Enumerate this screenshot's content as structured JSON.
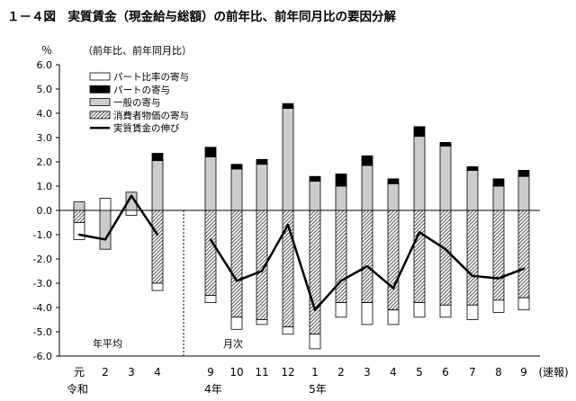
{
  "chart_data": {
    "type": "bar",
    "title": "１－４図　実質賃金（現金給与総額）の前年比、前年同月比の要因分解",
    "subtitle": "（前年比、前年同月比）",
    "ylabel": "％",
    "ylim": [
      -6.0,
      6.0
    ],
    "yticks": [
      6.0,
      5.0,
      4.0,
      3.0,
      2.0,
      1.0,
      0.0,
      -1.0,
      -2.0,
      -3.0,
      -4.0,
      -5.0,
      -6.0
    ],
    "ytick_labels": [
      "6.0",
      "5.0",
      "4.0",
      "3.0",
      "2.0",
      "1.0",
      "0.0",
      "-1.0",
      "-2.0",
      "-3.0",
      "-4.0",
      "-5.0",
      "-6.0"
    ],
    "grid": false,
    "legend_position": "top-left",
    "categories": [
      "元",
      "2",
      "3",
      "4",
      "9",
      "10",
      "11",
      "12",
      "1",
      "2",
      "3",
      "4",
      "5",
      "6",
      "7",
      "8",
      "9"
    ],
    "group_labels": {
      "reiwa": "令和",
      "annual": "年平均",
      "monthly": "月次",
      "year4": "4年",
      "year5": "5年",
      "preliminary": "(速報)"
    },
    "series": [
      {
        "name": "パート比率の寄与",
        "kind": "bar",
        "color": "#ffffff",
        "values": [
          -0.7,
          0.5,
          -0.2,
          -0.3,
          -0.3,
          -0.5,
          -0.2,
          -0.3,
          -0.6,
          -0.6,
          -0.9,
          -0.6,
          -0.6,
          -0.5,
          -0.6,
          -0.5,
          -0.5
        ]
      },
      {
        "name": "パートの寄与",
        "kind": "bar",
        "color": "#000000",
        "values": [
          0.0,
          0.0,
          0.0,
          0.3,
          0.4,
          0.2,
          0.2,
          0.2,
          0.2,
          0.5,
          0.4,
          0.2,
          0.4,
          0.15,
          0.15,
          0.3,
          0.25
        ]
      },
      {
        "name": "一般の寄与",
        "kind": "bar",
        "color": "#cccccc",
        "values": [
          0.35,
          -1.6,
          0.75,
          2.05,
          2.2,
          1.7,
          1.9,
          4.2,
          1.2,
          1.0,
          1.85,
          1.1,
          3.05,
          2.65,
          1.65,
          1.0,
          1.4
        ]
      },
      {
        "name": "消費者物価の寄与",
        "kind": "bar",
        "color": "hatch",
        "values": [
          -0.5,
          0.0,
          0.0,
          -3.0,
          -3.5,
          -4.4,
          -4.5,
          -4.8,
          -5.1,
          -3.8,
          -3.8,
          -4.1,
          -3.8,
          -3.9,
          -3.9,
          -3.7,
          -3.6
        ]
      },
      {
        "name": "実質賃金の伸び",
        "kind": "line",
        "color": "#000000",
        "values": [
          -1.0,
          -1.2,
          0.6,
          -1.0,
          -1.2,
          -2.9,
          -2.5,
          -0.6,
          -4.1,
          -2.9,
          -2.3,
          -3.2,
          -0.9,
          -1.6,
          -2.7,
          -2.8,
          -2.4
        ]
      }
    ]
  }
}
